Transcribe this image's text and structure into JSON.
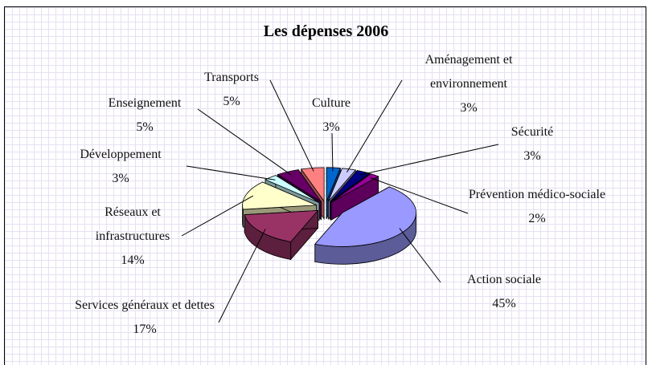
{
  "chart_data": {
    "type": "pie3d",
    "title": "Les dépenses 2006",
    "categories": [
      "Culture",
      "Aménagement et environnement",
      "Sécurité",
      "Prévention médico-sociale",
      "Action sociale",
      "Services généraux et dettes",
      "Réseaux et infrastructures",
      "Développement",
      "Enseignement",
      "Transports"
    ],
    "values": [
      3,
      3,
      3,
      2,
      45,
      17,
      14,
      3,
      5,
      5
    ],
    "value_labels": [
      "3%",
      "3%",
      "3%",
      "2%",
      "45%",
      "17%",
      "14%",
      "3%",
      "5%",
      "5%"
    ],
    "colors": [
      "#0066cc",
      "#ccccff",
      "#000080",
      "#990099",
      "#9999ff",
      "#993366",
      "#ffffcc",
      "#ccffff",
      "#660066",
      "#ff8080"
    ]
  }
}
